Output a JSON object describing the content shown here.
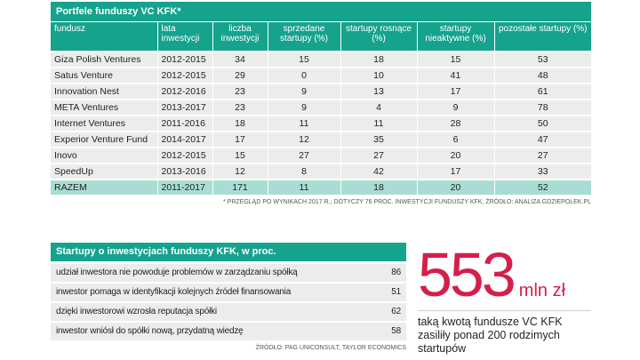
{
  "table1": {
    "title": "Portfele funduszy VC KFK*",
    "headers": [
      "fundusz",
      "lata inwestycji",
      "liczba inwestycji",
      "sprzedane startupy (%)",
      "startupy rosnące (%)",
      "startupy nieaktywne (%)",
      "pozostałe startupy (%)"
    ],
    "rows": [
      [
        "Giza Polish Ventures",
        "2012-2015",
        "34",
        "15",
        "18",
        "15",
        "53"
      ],
      [
        "Satus Venture",
        "2012-2015",
        "29",
        "0",
        "10",
        "41",
        "48"
      ],
      [
        "Innovation Nest",
        "2012-2016",
        "23",
        "9",
        "13",
        "17",
        "61"
      ],
      [
        "META Ventures",
        "2013-2017",
        "23",
        "9",
        "4",
        "9",
        "78"
      ],
      [
        "Internet Ventures",
        "2011-2016",
        "18",
        "11",
        "11",
        "28",
        "50"
      ],
      [
        "Experior Venture Fund",
        "2014-2017",
        "17",
        "12",
        "35",
        "6",
        "47"
      ],
      [
        "Inovo",
        "2012-2015",
        "15",
        "27",
        "27",
        "20",
        "27"
      ],
      [
        "SpeedUp",
        "2013-2016",
        "12",
        "8",
        "42",
        "17",
        "33"
      ],
      [
        "RAZEM",
        "2011-2017",
        "171",
        "11",
        "18",
        "20",
        "52"
      ]
    ],
    "note": "* PRZEGLĄD PO WYNIKACH 2017 R.; DOTYCZY 76 PROC. INWESTYCJI FUNDUSZY KFK, ŹRÓDŁO: ANALIZA GDZIEPOLEK.PL"
  },
  "table2": {
    "title": "Startupy o inwestycjach funduszy KFK, w proc.",
    "rows": [
      [
        "udział inwestora nie powoduje problemów w zarządzaniu spółką",
        "86"
      ],
      [
        "inwestor pomaga w identyfikacji kolejnych źródeł finansowania",
        "51"
      ],
      [
        "dzięki inwestorowi wzrosła reputacja spółki",
        "62"
      ],
      [
        "inwestor wniósł do spółki nową, przydatną wiedzę",
        "58"
      ]
    ],
    "source": "ŹRÓDŁO: PAG UNICONSULT, TAYLOR ECONOMICS"
  },
  "highlight": {
    "value": "553",
    "unit": "mln zł",
    "text": "taką kwotą fundusze VC KFK zasiliły ponad 200 rodzimych startupów"
  }
}
